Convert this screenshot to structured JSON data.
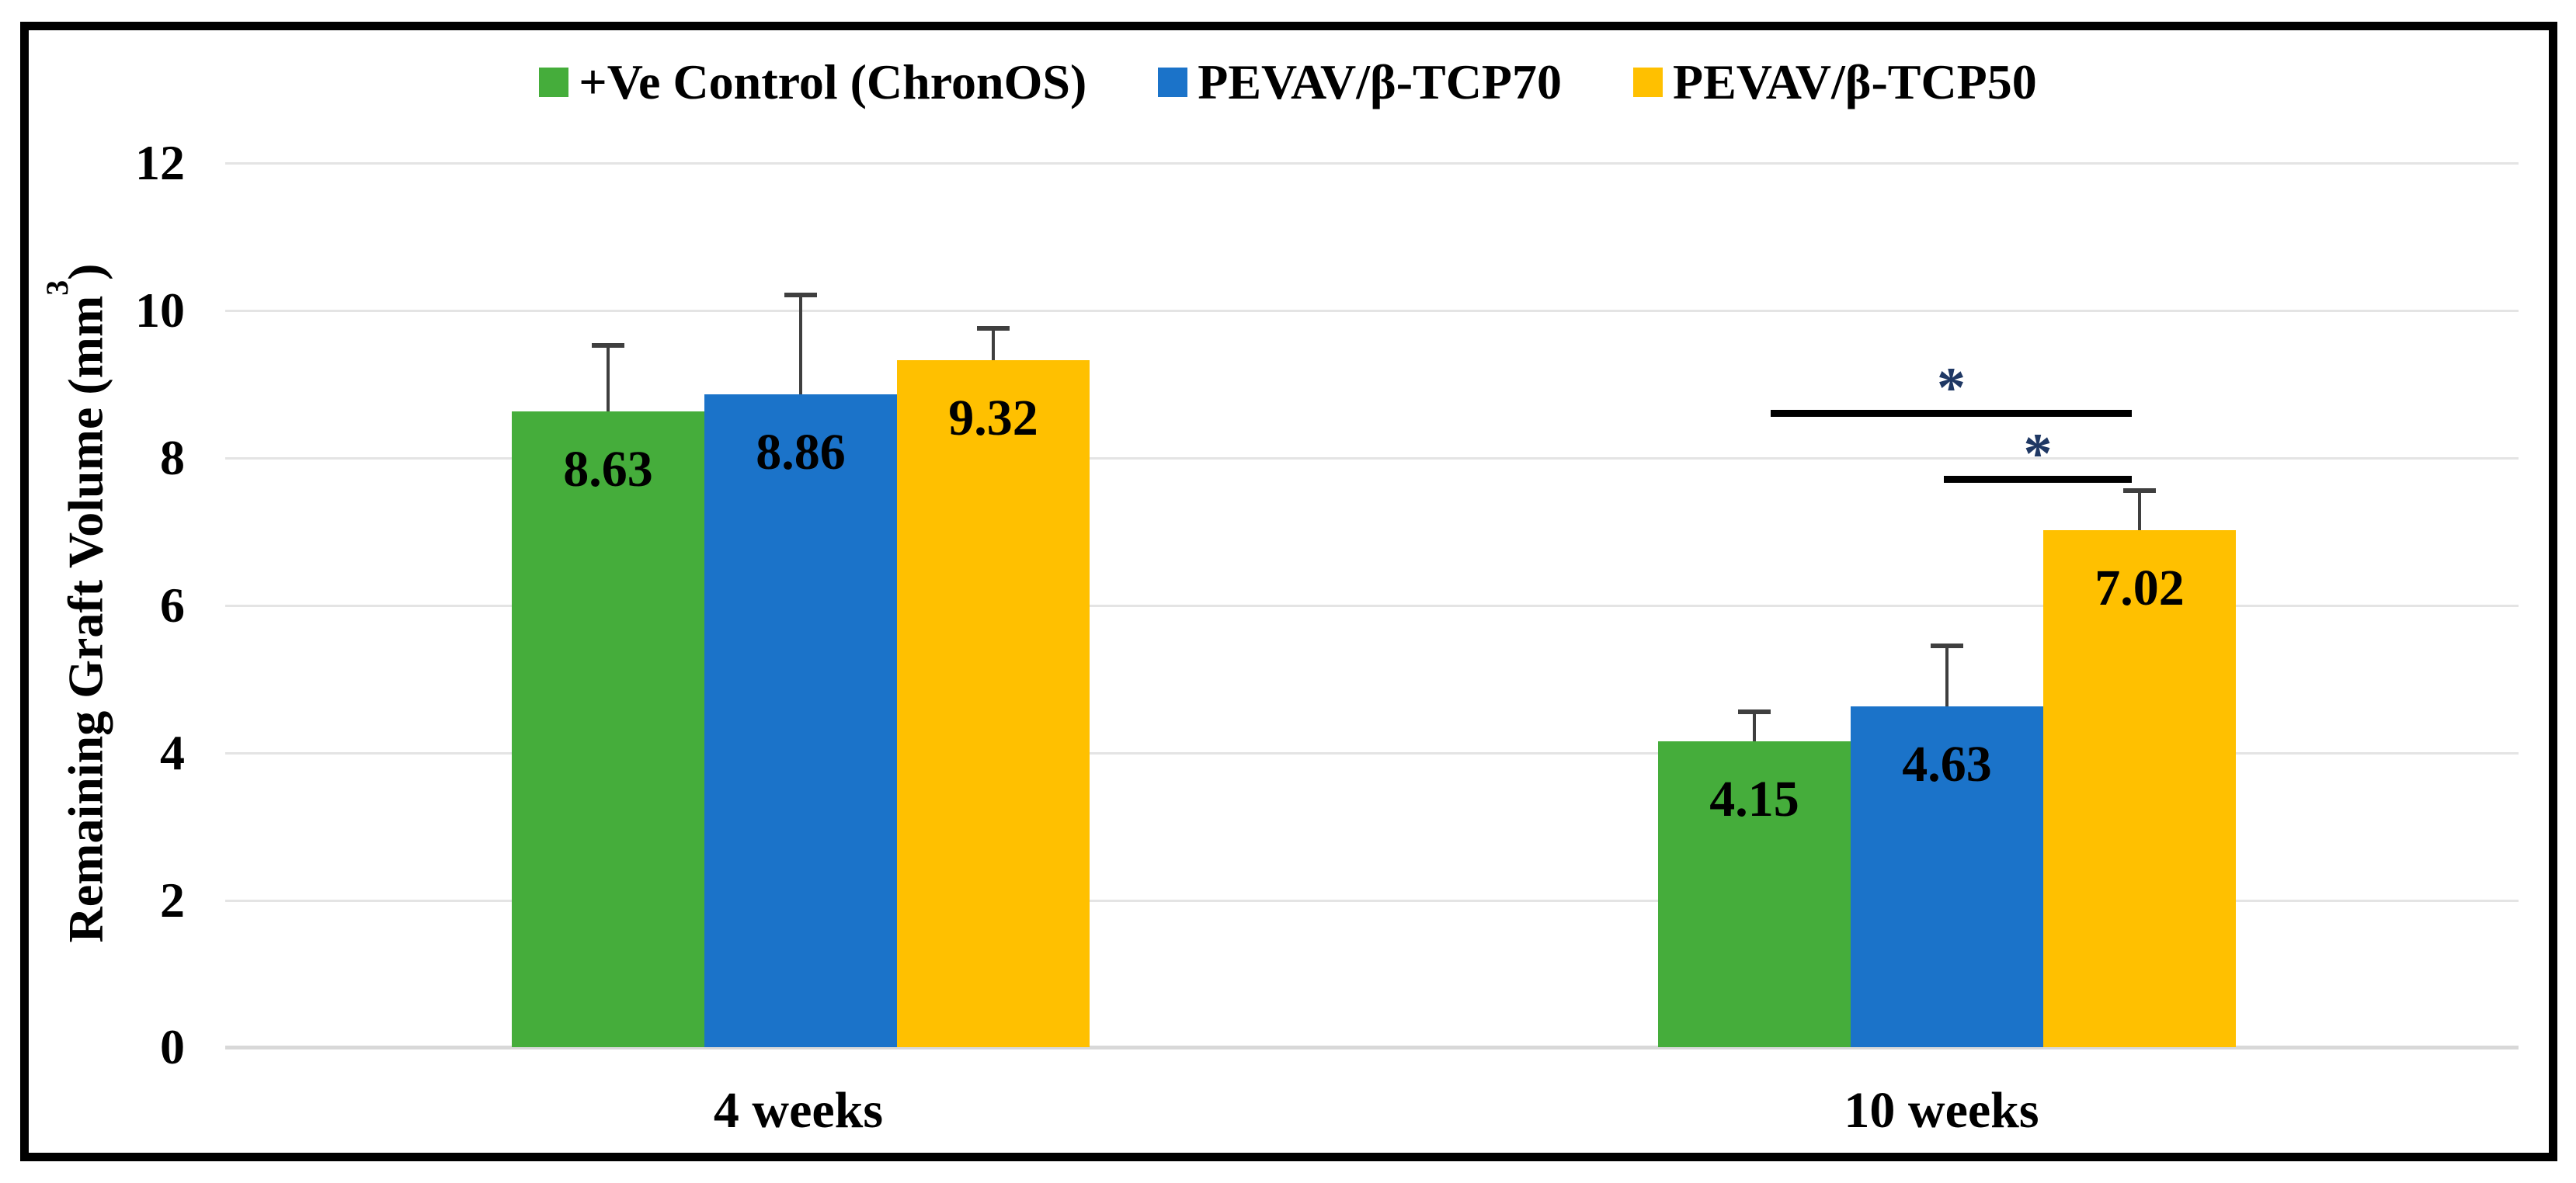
{
  "figure": {
    "background": "#ffffff",
    "border_color": "#000000",
    "annotation_star_color": "#1f3864"
  },
  "legend": {
    "items": [
      {
        "label": "+Ve Control (ChronOS)",
        "color": "#45ad3b"
      },
      {
        "label": "PEVAV/β-TCP70",
        "color": "#1b73c9"
      },
      {
        "label": "PEVAV/β-TCP50",
        "color": "#ffc000"
      }
    ]
  },
  "y_axis": {
    "title_pre": "Remaining Graft Volume (mm",
    "title_sup": "3",
    "title_post": ")",
    "ticks": [
      "12",
      "10",
      "8",
      "6",
      "4",
      "2",
      "0"
    ]
  },
  "x_axis": {
    "categories": [
      "4 weeks",
      "10 weeks"
    ]
  },
  "chart_data": {
    "type": "bar",
    "title": "",
    "categories": [
      "4 weeks",
      "10 weeks"
    ],
    "series": [
      {
        "name": "+Ve Control (ChronOS)",
        "color": "#45ad3b",
        "values": [
          8.63,
          4.15
        ],
        "errors_plus": [
          0.89,
          0.4
        ],
        "labels": [
          "8.63",
          "4.15"
        ]
      },
      {
        "name": "PEVAV/β-TCP70",
        "color": "#1b73c9",
        "values": [
          8.86,
          4.63
        ],
        "errors_plus": [
          1.35,
          0.82
        ],
        "labels": [
          "8.86",
          "4.63"
        ]
      },
      {
        "name": "PEVAV/β-TCP50",
        "color": "#ffc000",
        "values": [
          9.32,
          7.02
        ],
        "errors_plus": [
          0.44,
          0.53
        ],
        "labels": [
          "9.32",
          "7.02"
        ]
      }
    ],
    "xlabel": "",
    "ylabel": "Remaining Graft Volume (mm³)",
    "ylim": [
      0,
      12
    ],
    "ytick_step": 2,
    "grid": "horizontal",
    "legend_position": "top",
    "error_bars": "plus_only",
    "annotations": [
      {
        "symbol": "*",
        "significance_between": [
          "+Ve Control (ChronOS)",
          "PEVAV/β-TCP50"
        ],
        "category": "10 weeks",
        "line_y": 8.65
      },
      {
        "symbol": "*",
        "significance_between": [
          "PEVAV/β-TCP70",
          "PEVAV/β-TCP50"
        ],
        "category": "10 weeks",
        "line_y": 7.75
      }
    ]
  }
}
